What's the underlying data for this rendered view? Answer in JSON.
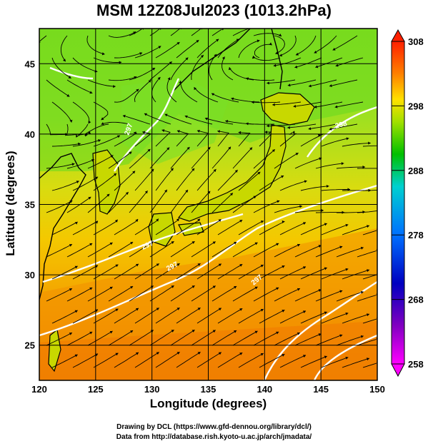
{
  "title": "MSM 12Z08Jul2023 (1013.2hPa)",
  "xlabel": "Longitude (degrees)",
  "ylabel": "Latitude  (degrees)",
  "credits": [
    "Drawing by DCL (https://www.gfd-dennou.org/library/dcl/)",
    "Data from http://database.rish.kyoto-u.ac.jp/arch/jmadata/"
  ],
  "map": {
    "lon_range": [
      120,
      150
    ],
    "lat_range": [
      22.5,
      47.5
    ],
    "lon_ticks": [
      120,
      125,
      130,
      135,
      140,
      145,
      150
    ],
    "lat_ticks": [
      25,
      30,
      35,
      40,
      45
    ],
    "lon_tick_labels": [
      "120",
      "125",
      "130",
      "135",
      "140",
      "145",
      "150"
    ],
    "lat_tick_labels": [
      "25",
      "30",
      "35",
      "40",
      "45"
    ],
    "contour_labels": [
      "297",
      "297",
      "297",
      "298",
      "297"
    ]
  },
  "colorbar": {
    "range": [
      258,
      308
    ],
    "tick_labels": [
      "308",
      "298",
      "288",
      "278",
      "268",
      "258"
    ],
    "colors": [
      "#ff00ff",
      "#0000c0",
      "#0080ff",
      "#00d0c0",
      "#00c000",
      "#b0e000",
      "#ffc000",
      "#ff7000",
      "#ff2000"
    ]
  }
}
